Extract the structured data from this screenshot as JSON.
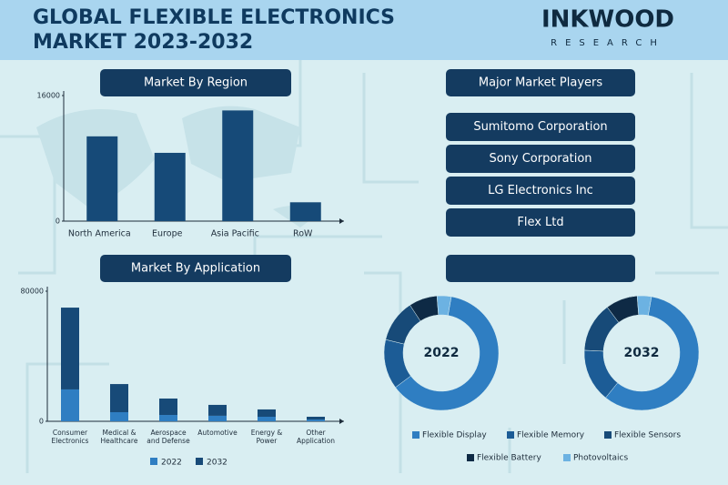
{
  "header": {
    "title": [
      "GLOBAL FLEXIBLE ELECTRONICS",
      "MARKET 2023-2032"
    ],
    "brand": "INKWOOD",
    "brand_sub": "RESEARCH"
  },
  "players": {
    "title": "Major Market Players",
    "items": [
      "Sumitomo Corporation",
      "Sony Corporation",
      "LG Electronics Inc",
      "Flex Ltd"
    ]
  },
  "chart_data": [
    {
      "type": "bar",
      "title": "Market By Region",
      "categories": [
        "North America",
        "Europe",
        "Asia Pacific",
        "RoW"
      ],
      "values": [
        10800,
        8700,
        14100,
        2400
      ],
      "color": "#164a78",
      "ylim": [
        0,
        16000
      ],
      "yticks": [
        0,
        16000
      ]
    },
    {
      "type": "stacked_bar",
      "title": "Market By Application",
      "categories": [
        [
          "Consumer",
          "Electronics"
        ],
        [
          "Medical &",
          "Healthcare"
        ],
        [
          "Aerospace",
          "and Defense"
        ],
        [
          "Automotive"
        ],
        [
          "Energy &",
          "Power"
        ],
        [
          "Other",
          "Application"
        ]
      ],
      "series": [
        {
          "name": "2022",
          "color": "#2f7ec2",
          "values": [
            19600,
            5600,
            3900,
            3400,
            2800,
            1100
          ]
        },
        {
          "name": "2032",
          "color": "#174a78",
          "values": [
            50300,
            17300,
            10100,
            6700,
            4500,
            1700
          ]
        }
      ],
      "ylim": [
        0,
        80000
      ],
      "yticks": [
        0,
        80000
      ]
    },
    {
      "type": "pie",
      "donut": true,
      "title": "2022",
      "categories": [
        "Flexible Display",
        "Flexible Memory",
        "Flexible Sensors",
        "Flexible Battery",
        "Photovoltaics"
      ],
      "colors": [
        "#2f7ec2",
        "#1c5c96",
        "#174a78",
        "#0e2a45",
        "#6cb2e2"
      ],
      "values": [
        62,
        14,
        12,
        8,
        4
      ]
    },
    {
      "type": "pie",
      "donut": true,
      "title": "2032",
      "values": [
        58,
        15,
        14,
        9,
        4
      ]
    }
  ]
}
